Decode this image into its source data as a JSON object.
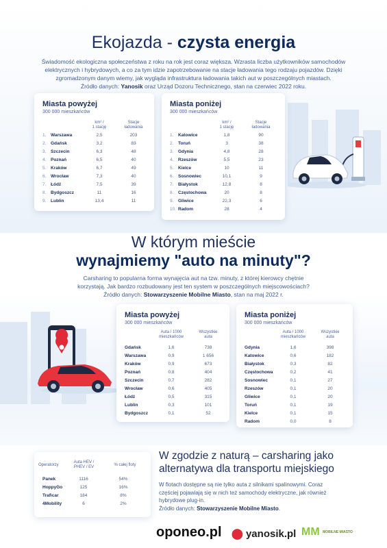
{
  "title": {
    "pre": "Ekojazda - ",
    "bold": "czysta energia"
  },
  "intro1": {
    "lines": [
      "Świadomość ekologiczna społeczeństwa z roku na rok jest coraz większa. Wzrasta liczba użytkowników samochodów",
      "elektrycznych i hybrydowych, a co za tym idzie zapotrzebowanie na stacje ładowania tego rodzaju pojazdów. Dzięki",
      "zgromadzonym danym wiemy, jak wygląda infrastruktura ładowania takich aut w poszczególnych miastach."
    ],
    "src_pre": "Źródło danych: ",
    "src_b": "Yanosik",
    "src_post": " oraz Urząd Dozoru Technicznego, stan na czerwiec 2022 roku."
  },
  "t1": {
    "title": "Miasta powyżej",
    "sub": "300 000 mieszkańców",
    "c1": "km² /\n1 stację",
    "c2": "Stacje\nładowania",
    "rows": [
      [
        "1.",
        "Warszawa",
        "2,5",
        "203"
      ],
      [
        "2.",
        "Gdańsk",
        "3,2",
        "83"
      ],
      [
        "3.",
        "Szczecin",
        "6,3",
        "48"
      ],
      [
        "4.",
        "Poznań",
        "6,5",
        "40"
      ],
      [
        "5.",
        "Kraków",
        "6,7",
        "49"
      ],
      [
        "6.",
        "Wrocław",
        "7,3",
        "40"
      ],
      [
        "7.",
        "Łódź",
        "7,5",
        "39"
      ],
      [
        "8.",
        "Bydgoszcz",
        "11",
        "16"
      ],
      [
        "9.",
        "Lublin",
        "13,4",
        "11"
      ]
    ]
  },
  "t2": {
    "title": "Miasta poniżej",
    "sub": "300 000 mieszkańców",
    "c1": "km² /\n1 stację",
    "c2": "Stacje\nładowania",
    "rows": [
      [
        "1.",
        "Katowice",
        "1,8",
        "90"
      ],
      [
        "2.",
        "Toruń",
        "3",
        "38"
      ],
      [
        "3.",
        "Gdynia",
        "4,8",
        "28"
      ],
      [
        "4.",
        "Rzeszów",
        "5,5",
        "23"
      ],
      [
        "5.",
        "Kielce",
        "10",
        "11"
      ],
      [
        "6.",
        "Sosnowiec",
        "10,1",
        "9"
      ],
      [
        "7.",
        "Białystok",
        "12,8",
        "8"
      ],
      [
        "8.",
        "Częstochowa",
        "20",
        "8"
      ],
      [
        "9.",
        "Gliwice",
        "22,3",
        "6"
      ],
      [
        "10.",
        "Radom",
        "28",
        "4"
      ]
    ]
  },
  "section2": {
    "line1": "W którym mieście",
    "line2": "wynajmiemy \"auto na minuty\"?"
  },
  "intro2": {
    "lines": [
      "Carsharing to popularna forma wynajęcia aut na tzw. minuty, z której kierowcy chętnie",
      "korzystają. Jak bardzo rozbudowany jest ten system w poszczególnych miejscowościach?"
    ],
    "src_pre": "Źródło danych: ",
    "src_b": "Stowarzyszenie Mobilne Miasto",
    "src_post": ", stan na maj 2022 r."
  },
  "t3": {
    "title": "Miasta powyżej",
    "sub": "300 000 mieszkańców",
    "c1": "Auta / 1000\nmieszkańców",
    "c2": "Wszystkie\nauta",
    "rows": [
      [
        "Gdańsk",
        "1,6",
        "738"
      ],
      [
        "Warszawa",
        "0,9",
        "1 656"
      ],
      [
        "Kraków",
        "0,9",
        "673"
      ],
      [
        "Poznań",
        "0,8",
        "404"
      ],
      [
        "Szczecin",
        "0,7",
        "282"
      ],
      [
        "Wrocław",
        "0,6",
        "405"
      ],
      [
        "Łódź",
        "0,5",
        "315"
      ],
      [
        "Lublin",
        "0,3",
        "101"
      ],
      [
        "Bydgoszcz",
        "0,1",
        "52"
      ]
    ]
  },
  "t4": {
    "title": "Miasta poniżej",
    "sub": "300 000 mieszkańców",
    "c1": "Auta / 1000\nmieszkańców",
    "c2": "Wszystkie\nauta",
    "rows": [
      [
        "Gdynia",
        "1,6",
        "398"
      ],
      [
        "Katowice",
        "0,6",
        "182"
      ],
      [
        "Białystok",
        "0,3",
        "82"
      ],
      [
        "Częstochowa",
        "0,2",
        "41"
      ],
      [
        "Sosnowiec",
        "0,1",
        "27"
      ],
      [
        "Rzeszów",
        "0,1",
        "20"
      ],
      [
        "Gliwice",
        "0,1",
        "20"
      ],
      [
        "Toruń",
        "0,1",
        "19"
      ],
      [
        "Kielce",
        "0,1",
        "15"
      ],
      [
        "Radom",
        "0,0",
        "8"
      ]
    ]
  },
  "t5": {
    "c0": "Operatorzy",
    "c1": "Auta HEV /\nPHEV / EV",
    "c2": "% całej floty",
    "rows": [
      [
        "Panek",
        "1116",
        "54%"
      ],
      [
        "HoppyGo",
        "125",
        "16%"
      ],
      [
        "Traficar",
        "184",
        "8%"
      ],
      [
        "4Mobility",
        "6",
        "2%"
      ]
    ]
  },
  "section3": {
    "line1": "W zgodzie z naturą – carsharing jako",
    "line2": "alternatywa dla transportu miejskiego"
  },
  "intro3": {
    "lines": [
      "W flotach dostępne są nie tylko auta z silnikami spalinowymi. Coraz",
      "częściej pojawiają się w nich też samochody elektryczne, jak również",
      "hybrydowe plug-in."
    ],
    "src_pre": "Źródło danych: ",
    "src_b": "Stowarzyszenie Mobilne Miasto",
    "src_post": "."
  },
  "logos": {
    "oponeo": "oponeo.pl",
    "yanosik": "yanosik.pl",
    "mm": "MM",
    "mm_text": "MOBILNE MIASTO"
  }
}
